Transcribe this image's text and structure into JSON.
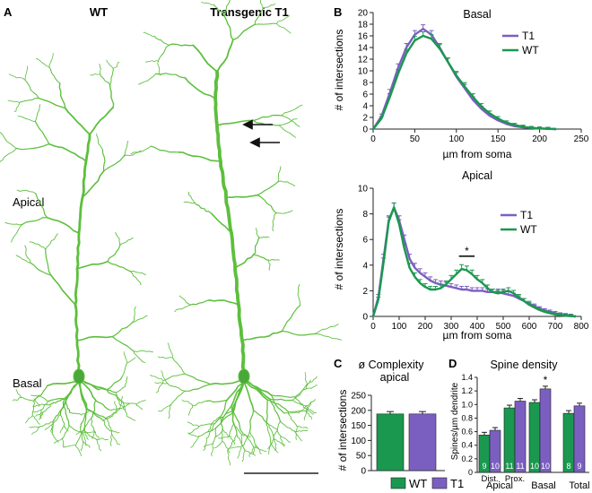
{
  "colors": {
    "wt": "#1a9850",
    "t1": "#7b5fc0",
    "neuron": "#5cbf3c",
    "axis": "#222222"
  },
  "panel_a": {
    "letter": "A",
    "wt_label": "WT",
    "t1_label": "Transgenic T1",
    "apical_label": "Apical",
    "basal_label": "Basal"
  },
  "panel_b": {
    "letter": "B"
  },
  "panel_c": {
    "letter": "C"
  },
  "panel_d": {
    "letter": "D"
  },
  "legend_bottom": {
    "wt": "WT",
    "t1": "T1"
  },
  "chart_data": [
    {
      "id": "basal",
      "type": "line",
      "title": "Basal",
      "xlabel": "µm from soma",
      "ylabel": "# of intersections",
      "xlim": [
        0,
        250
      ],
      "ylim": [
        0,
        20
      ],
      "xticks": [
        0,
        50,
        100,
        150,
        200,
        250
      ],
      "yticks": [
        0,
        2,
        4,
        6,
        8,
        10,
        12,
        14,
        16,
        18,
        20
      ],
      "legend": "top-right",
      "x": [
        0,
        10,
        20,
        30,
        40,
        50,
        60,
        70,
        80,
        90,
        100,
        110,
        120,
        130,
        140,
        150,
        160,
        170,
        180,
        190,
        200,
        210,
        220
      ],
      "series": [
        {
          "name": "T1",
          "values": [
            0,
            2.2,
            6.2,
            10.5,
            14.0,
            16.2,
            17.2,
            16.2,
            14.0,
            11.5,
            9.0,
            7.0,
            5.0,
            3.5,
            2.3,
            1.5,
            0.9,
            0.5,
            0.3,
            0.2,
            0.1,
            0.05,
            0
          ]
        },
        {
          "name": "WT",
          "values": [
            0,
            1.8,
            5.5,
            9.5,
            13.0,
            15.2,
            16.0,
            15.5,
            13.8,
            11.5,
            9.2,
            7.3,
            5.5,
            3.9,
            2.7,
            1.8,
            1.1,
            0.7,
            0.4,
            0.2,
            0.1,
            0.05,
            0
          ]
        }
      ]
    },
    {
      "id": "apical",
      "type": "line",
      "title": "Apical",
      "xlabel": "µm from soma",
      "ylabel": "# of intersections",
      "xlim": [
        0,
        800
      ],
      "ylim": [
        0,
        10
      ],
      "xticks": [
        0,
        100,
        200,
        300,
        400,
        500,
        600,
        700,
        800
      ],
      "yticks": [
        0,
        2,
        4,
        6,
        8,
        10
      ],
      "legend": "top-right",
      "annotation": {
        "text": "*",
        "x_from": 330,
        "x_to": 390,
        "y": 4.7
      },
      "x": [
        0,
        20,
        40,
        60,
        80,
        100,
        120,
        140,
        160,
        180,
        200,
        220,
        240,
        260,
        280,
        300,
        320,
        340,
        360,
        380,
        400,
        420,
        440,
        460,
        480,
        500,
        520,
        540,
        560,
        580,
        600,
        620,
        640,
        660,
        680,
        700,
        720,
        740,
        760,
        780
      ],
      "series": [
        {
          "name": "T1",
          "values": [
            0,
            1.5,
            4.5,
            7.5,
            8.5,
            7.5,
            6.0,
            4.5,
            3.8,
            3.4,
            3.1,
            2.8,
            2.6,
            2.5,
            2.4,
            2.3,
            2.2,
            2.1,
            2.1,
            2.0,
            2.0,
            2.0,
            1.9,
            1.9,
            1.9,
            1.8,
            1.7,
            1.6,
            1.4,
            1.2,
            1.0,
            0.8,
            0.6,
            0.45,
            0.35,
            0.25,
            0.15,
            0.1,
            0.05,
            0
          ]
        },
        {
          "name": "WT",
          "values": [
            0,
            1.3,
            4.2,
            7.4,
            8.5,
            7.2,
            5.3,
            3.8,
            3.1,
            2.6,
            2.3,
            2.1,
            2.1,
            2.2,
            2.5,
            2.9,
            3.3,
            3.7,
            3.6,
            3.3,
            2.9,
            2.6,
            2.2,
            1.9,
            1.8,
            1.9,
            2.0,
            1.8,
            1.5,
            1.2,
            0.9,
            0.7,
            0.5,
            0.35,
            0.25,
            0.15,
            0.1,
            0.05,
            0.02,
            0
          ]
        }
      ]
    },
    {
      "id": "complexity",
      "type": "bar",
      "title": "ø Complexity",
      "subtitle": "apical",
      "ylabel": "# of intersections",
      "ylim": [
        0,
        250
      ],
      "yticks": [
        0,
        50,
        100,
        150,
        200,
        250
      ],
      "series": [
        {
          "name": "WT",
          "values": [
            188
          ]
        },
        {
          "name": "T1",
          "values": [
            188
          ]
        }
      ]
    },
    {
      "id": "spine_density",
      "type": "bar",
      "title": "Spine density",
      "ylabel": "Spines/µm dendrite",
      "ylim": [
        0,
        1.4
      ],
      "yticks": [
        "0",
        "0.2",
        "0.4",
        "0.6",
        "0.8",
        "1.0",
        "1.2",
        "1.4"
      ],
      "groups": [
        {
          "label": "Dist.",
          "wt": 0.55,
          "t1": 0.62,
          "n_wt": "9",
          "n_t1": "10",
          "star": ""
        },
        {
          "label": "Prox.",
          "wt": 0.95,
          "t1": 1.05,
          "n_wt": "11",
          "n_t1": "11",
          "star": ""
        },
        {
          "label": "Basal",
          "wt": 1.03,
          "t1": 1.23,
          "n_wt": "10",
          "n_t1": "10",
          "star": "*"
        },
        {
          "label": "Total",
          "wt": 0.87,
          "t1": 0.98,
          "n_wt": "8",
          "n_t1": "9",
          "star": ""
        }
      ],
      "group_labels": {
        "apical": "Apical",
        "basal": "Basal",
        "total": "Total"
      }
    }
  ]
}
